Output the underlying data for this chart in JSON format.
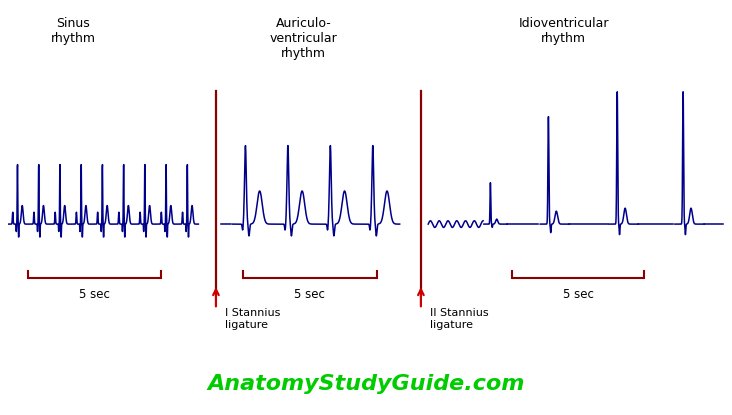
{
  "background_color": "#ffffff",
  "waveform_color": "#00008B",
  "divider_color": "#8B0000",
  "arrow_color": "#cc0000",
  "bracket_color": "#8B0000",
  "text_color": "#000000",
  "website_color": "#00cc00",
  "labels": {
    "sinus": "Sinus\nrhythm",
    "av": "Auriculo-\nventricular\nrhythm",
    "idio": "Idioventricular\nrhythm",
    "stannius1": "I Stannius\nligature",
    "stannius2": "II Stannius\nligature",
    "sec1": "5 sec",
    "sec2": "5 sec",
    "sec3": "5 sec",
    "website": "AnatomyStudyGuide.com"
  },
  "figsize": [
    7.32,
    4.15
  ],
  "dpi": 100
}
